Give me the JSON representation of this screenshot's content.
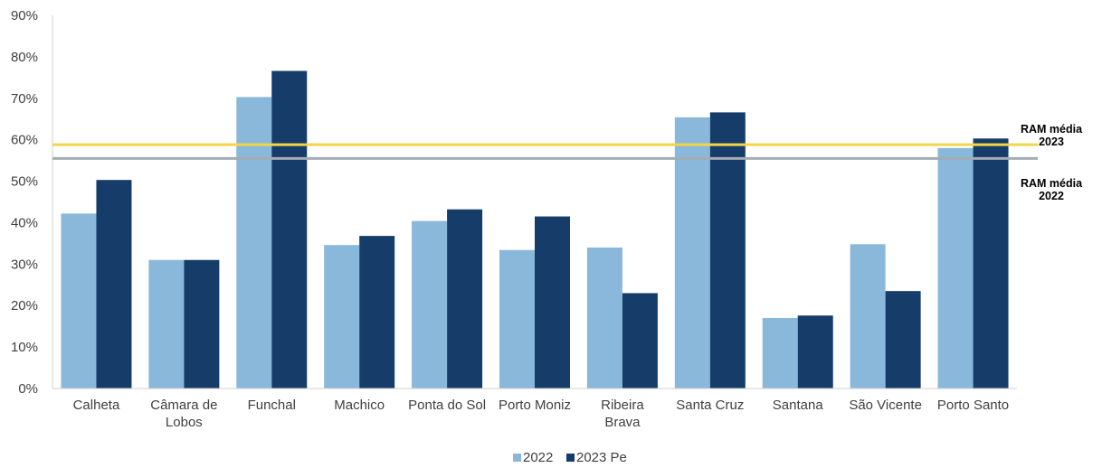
{
  "chart_data": {
    "type": "bar",
    "categories": [
      [
        "Calheta"
      ],
      [
        "Câmara de",
        "Lobos"
      ],
      [
        "Funchal"
      ],
      [
        "Machico"
      ],
      [
        "Ponta do Sol"
      ],
      [
        "Porto Moniz"
      ],
      [
        "Ribeira",
        "Brava"
      ],
      [
        "Santa Cruz"
      ],
      [
        "Santana"
      ],
      [
        "São Vicente"
      ],
      [
        "Porto Santo"
      ]
    ],
    "series": [
      {
        "name": "2022",
        "color": "#8ab8db",
        "values": [
          42.2,
          31.0,
          70.3,
          34.6,
          40.4,
          33.4,
          34.0,
          65.4,
          17.0,
          34.8,
          58.0
        ]
      },
      {
        "name": "2023 Pe",
        "color": "#163d6a",
        "values": [
          50.3,
          31.0,
          76.6,
          36.8,
          43.2,
          41.5,
          23.0,
          66.6,
          17.6,
          23.5,
          60.3
        ]
      }
    ],
    "reference_lines": [
      {
        "label": [
          "RAM média",
          "2023"
        ],
        "value": 58.8,
        "color": "#f5d547"
      },
      {
        "label": [
          "RAM média",
          "2022"
        ],
        "value": 55.5,
        "color": "#a3acb5"
      }
    ],
    "yticks": [
      "0%",
      "10%",
      "20%",
      "30%",
      "40%",
      "50%",
      "60%",
      "70%",
      "80%",
      "90%"
    ],
    "ylim": [
      0,
      90
    ],
    "grid": false,
    "legend_position": "bottom-center"
  }
}
